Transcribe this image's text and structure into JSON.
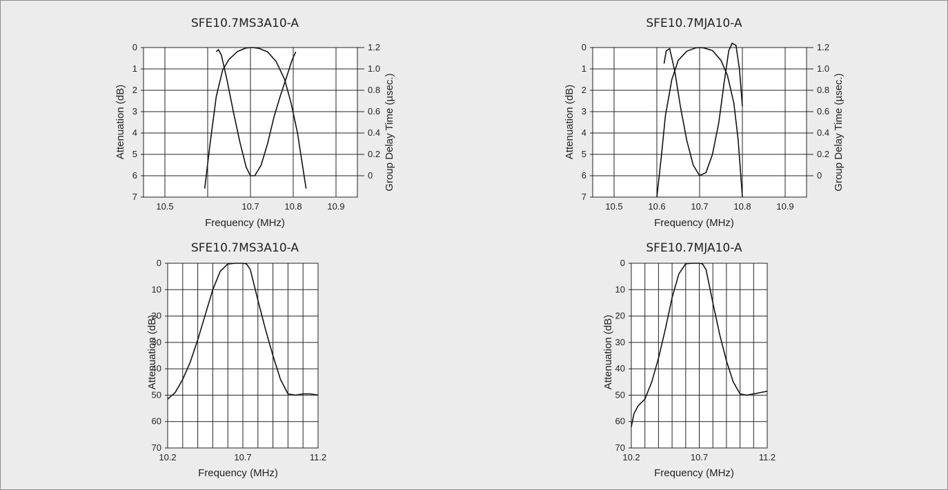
{
  "chart_data": [
    {
      "type": "line",
      "title": "SFE10.7MS3A10-A",
      "xlabel": "Frequency (MHz)",
      "ylabel": "Attenuation (dB)",
      "y2label": "Group Delay Time (µsec.)",
      "xlim": [
        10.45,
        10.95
      ],
      "ylim": [
        0,
        7
      ],
      "y2lim": [
        0,
        1.2
      ],
      "x_ticks": [
        "10.5",
        "10.6",
        "10.7",
        "10.8",
        "10.9"
      ],
      "x_tick_labels": [
        "10.5",
        "",
        "10.7",
        "10.8",
        "10.9"
      ],
      "y_ticks": [
        "0",
        "1",
        "2",
        "3",
        "4",
        "5",
        "6",
        "7"
      ],
      "y2_ticks": [
        "1.2",
        "1.0",
        "0.8",
        "0.6",
        "0.4",
        "0.2",
        "0"
      ],
      "series": [
        {
          "axis": "y",
          "x": [
            10.593,
            10.605,
            10.62,
            10.635,
            10.65,
            10.67,
            10.69,
            10.705,
            10.72,
            10.74,
            10.76,
            10.78,
            10.795,
            10.81,
            10.82,
            10.83
          ],
          "y": [
            6.6,
            4.6,
            2.3,
            1.05,
            0.55,
            0.18,
            0.02,
            0.0,
            0.04,
            0.2,
            0.65,
            1.5,
            2.6,
            4.0,
            5.3,
            6.6
          ]
        },
        {
          "axis": "y2",
          "x": [
            10.62,
            10.625,
            10.632,
            10.645,
            10.66,
            10.675,
            10.69,
            10.7,
            10.71,
            10.725,
            10.74,
            10.755,
            10.77,
            10.785,
            10.797,
            10.806
          ],
          "y": [
            1.16,
            1.18,
            1.13,
            0.9,
            0.6,
            0.32,
            0.08,
            0.0,
            0.0,
            0.1,
            0.3,
            0.55,
            0.75,
            0.93,
            1.08,
            1.16
          ]
        }
      ],
      "grid": true
    },
    {
      "type": "line",
      "title": "SFE10.7MJA10-A",
      "xlabel": "Frequency (MHz)",
      "ylabel": "Attenuation (dB)",
      "y2label": "Group Delay Time (µsec.)",
      "xlim": [
        10.45,
        10.95
      ],
      "ylim": [
        0,
        7
      ],
      "y2lim": [
        0,
        1.2
      ],
      "x_ticks": [
        "10.5",
        "10.6",
        "10.7",
        "10.8",
        "10.9"
      ],
      "x_tick_labels": [
        "10.5",
        "10.6",
        "10.7",
        "10.8",
        "10.9"
      ],
      "y_ticks": [
        "0",
        "1",
        "2",
        "3",
        "4",
        "5",
        "6",
        "7"
      ],
      "y2_ticks": [
        "1.2",
        "1.0",
        "0.8",
        "0.6",
        "0.4",
        "0.2",
        "0"
      ],
      "series": [
        {
          "axis": "y",
          "x": [
            10.6,
            10.61,
            10.62,
            10.635,
            10.65,
            10.67,
            10.69,
            10.7,
            10.71,
            10.73,
            10.75,
            10.765,
            10.78,
            10.79,
            10.8
          ],
          "y": [
            7.0,
            5.2,
            3.2,
            1.5,
            0.6,
            0.17,
            0.02,
            0.0,
            0.02,
            0.14,
            0.6,
            1.3,
            2.6,
            4.3,
            7.0
          ]
        },
        {
          "axis": "y2",
          "x": [
            10.617,
            10.622,
            10.63,
            10.642,
            10.655,
            10.67,
            10.685,
            10.7,
            10.715,
            10.73,
            10.745,
            10.757,
            10.768,
            10.776,
            10.785,
            10.793,
            10.8
          ],
          "y": [
            1.05,
            1.17,
            1.19,
            0.98,
            0.65,
            0.33,
            0.1,
            0.0,
            0.03,
            0.2,
            0.5,
            0.86,
            1.17,
            1.24,
            1.22,
            1.0,
            0.65
          ]
        }
      ],
      "grid": true
    },
    {
      "type": "line",
      "title": "SFE10.7MS3A10-A",
      "xlabel": "Frequency (MHz)",
      "ylabel": "Attenuation (dB)",
      "xlim": [
        10.2,
        11.2
      ],
      "ylim": [
        0,
        70
      ],
      "x_tick_labels": [
        "10.2",
        "10.7",
        "11.2"
      ],
      "y_ticks": [
        "0",
        "10",
        "20",
        "30",
        "40",
        "50",
        "60",
        "70"
      ],
      "series": [
        {
          "x": [
            10.2,
            10.25,
            10.3,
            10.35,
            10.4,
            10.45,
            10.5,
            10.55,
            10.6,
            10.65,
            10.675,
            10.7,
            10.725,
            10.75,
            10.8,
            10.85,
            10.9,
            10.95,
            11.0,
            11.05,
            11.1,
            11.15,
            11.2
          ],
          "y": [
            51.5,
            49,
            44,
            37.5,
            29,
            19.5,
            10,
            3,
            0.3,
            0,
            0,
            0,
            0.3,
            2.5,
            14,
            25,
            35,
            44,
            49.5,
            50,
            49.5,
            49.5,
            50
          ]
        }
      ],
      "grid": true
    },
    {
      "type": "line",
      "title": "SFE10.7MJA10-A",
      "xlabel": "Frequency (MHz)",
      "ylabel": "Attenuation (dB)",
      "xlim": [
        10.2,
        11.2
      ],
      "ylim": [
        0,
        70
      ],
      "x_tick_labels": [
        "10.2",
        "10.7",
        "11.2"
      ],
      "y_ticks": [
        "0",
        "10",
        "20",
        "30",
        "40",
        "50",
        "60",
        "70"
      ],
      "series": [
        {
          "x": [
            10.2,
            10.22,
            10.25,
            10.3,
            10.35,
            10.4,
            10.45,
            10.5,
            10.55,
            10.6,
            10.65,
            10.675,
            10.7,
            10.725,
            10.75,
            10.8,
            10.85,
            10.9,
            10.95,
            11.0,
            11.05,
            11.1,
            11.15,
            11.2
          ],
          "y": [
            62,
            57,
            54,
            51.5,
            45,
            36,
            25,
            13,
            4,
            0.2,
            0,
            0,
            0,
            0.3,
            2.5,
            15,
            27,
            37,
            45,
            49.5,
            50,
            49.5,
            49,
            48.5
          ]
        }
      ],
      "grid": true
    }
  ]
}
